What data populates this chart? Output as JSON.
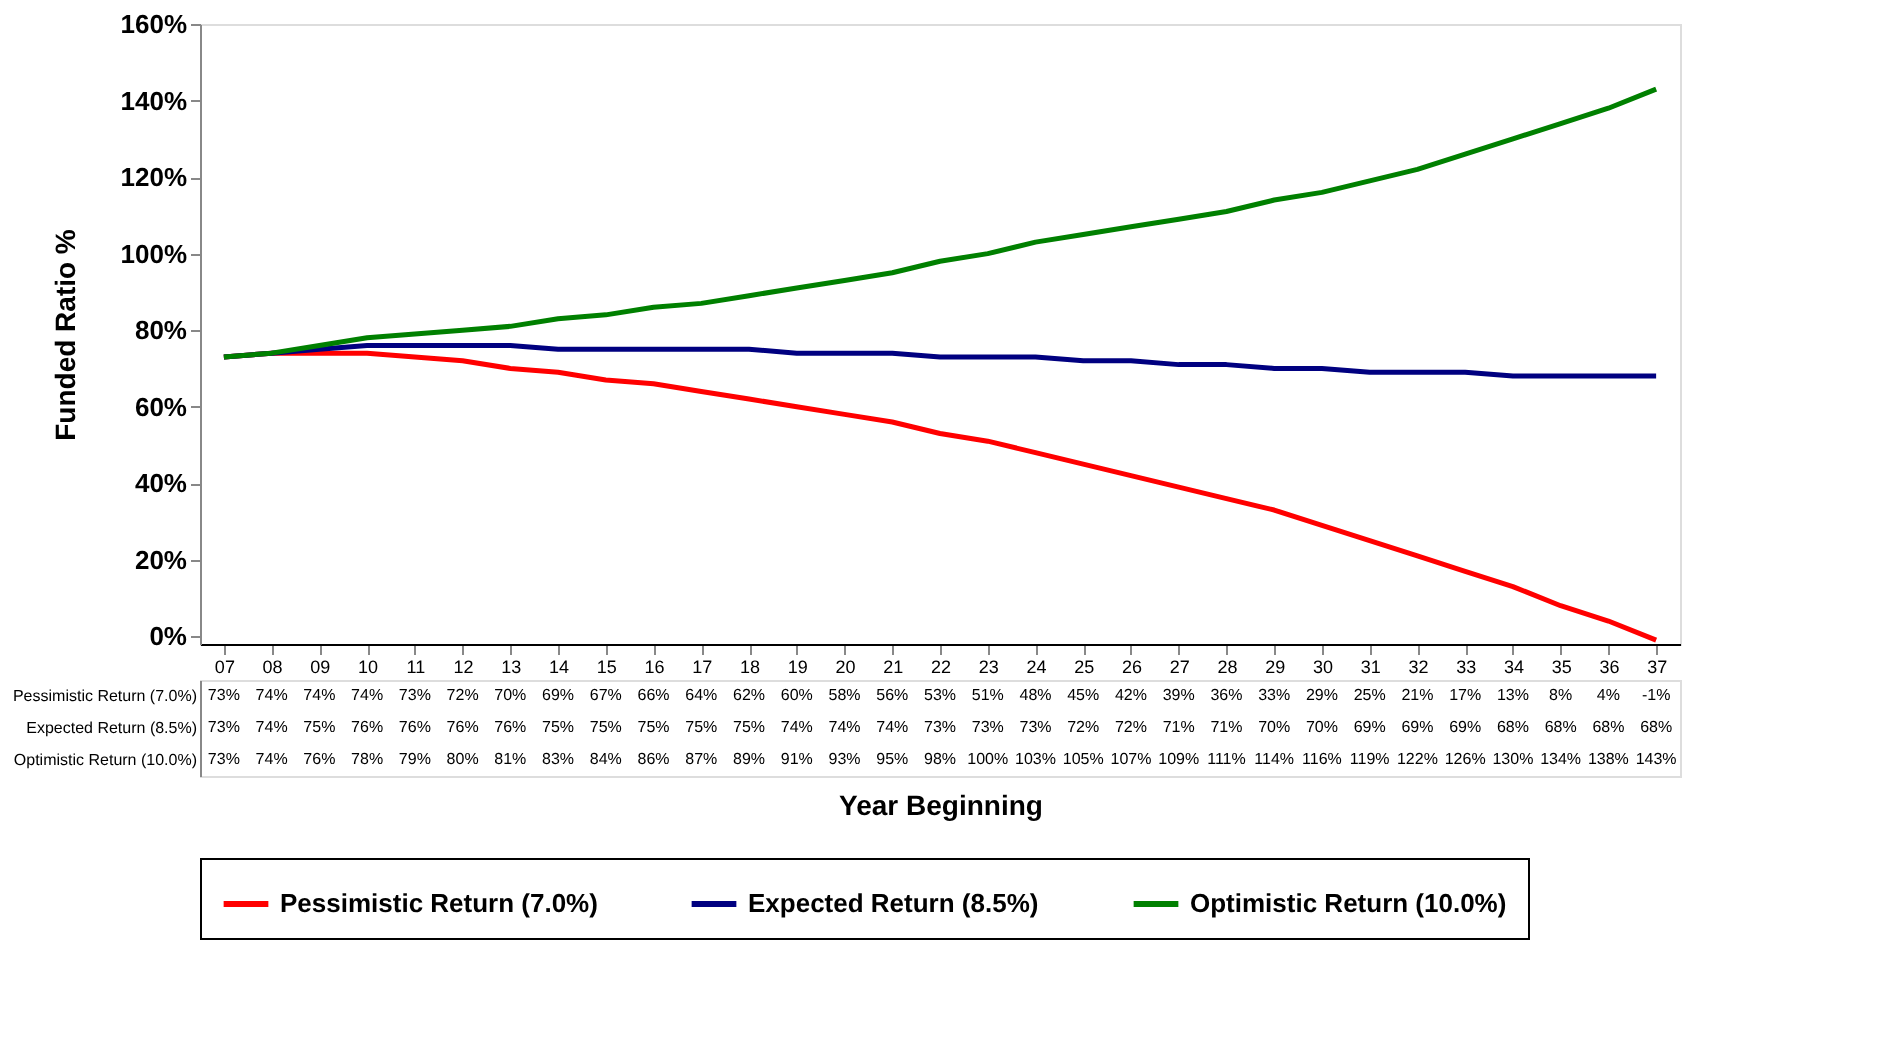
{
  "chart_data": {
    "type": "line",
    "xlabel": "Year Beginning",
    "ylabel": "Funded Ratio %",
    "categories": [
      "07",
      "08",
      "09",
      "10",
      "11",
      "12",
      "13",
      "14",
      "15",
      "16",
      "17",
      "18",
      "19",
      "20",
      "21",
      "22",
      "23",
      "24",
      "25",
      "26",
      "27",
      "28",
      "29",
      "30",
      "31",
      "32",
      "33",
      "34",
      "35",
      "36",
      "37"
    ],
    "series": [
      {
        "name": "Pessimistic Return (7.0%)",
        "color": "#ff0000",
        "values": [
          73,
          74,
          74,
          74,
          73,
          72,
          70,
          69,
          67,
          66,
          64,
          62,
          60,
          58,
          56,
          53,
          51,
          48,
          45,
          42,
          39,
          36,
          33,
          29,
          25,
          21,
          17,
          13,
          8,
          4,
          -1
        ],
        "value_labels": [
          "73%",
          "74%",
          "74%",
          "74%",
          "73%",
          "72%",
          "70%",
          "69%",
          "67%",
          "66%",
          "64%",
          "62%",
          "60%",
          "58%",
          "56%",
          "53%",
          "51%",
          "48%",
          "45%",
          "42%",
          "39%",
          "36%",
          "33%",
          "29%",
          "25%",
          "21%",
          "17%",
          "13%",
          "8%",
          "4%",
          "-1%"
        ]
      },
      {
        "name": "Expected Return (8.5%)",
        "color": "#000080",
        "values": [
          73,
          74,
          75,
          76,
          76,
          76,
          76,
          75,
          75,
          75,
          75,
          75,
          74,
          74,
          74,
          73,
          73,
          73,
          72,
          72,
          71,
          71,
          70,
          70,
          69,
          69,
          69,
          68,
          68,
          68,
          68
        ],
        "value_labels": [
          "73%",
          "74%",
          "75%",
          "76%",
          "76%",
          "76%",
          "76%",
          "75%",
          "75%",
          "75%",
          "75%",
          "75%",
          "74%",
          "74%",
          "74%",
          "73%",
          "73%",
          "73%",
          "72%",
          "72%",
          "71%",
          "71%",
          "70%",
          "70%",
          "69%",
          "69%",
          "69%",
          "68%",
          "68%",
          "68%",
          "68%"
        ]
      },
      {
        "name": "Optimistic Return (10.0%)",
        "color": "#008000",
        "values": [
          73,
          74,
          76,
          78,
          79,
          80,
          81,
          83,
          84,
          86,
          87,
          89,
          91,
          93,
          95,
          98,
          100,
          103,
          105,
          107,
          109,
          111,
          114,
          116,
          119,
          122,
          126,
          130,
          134,
          138,
          143
        ],
        "value_labels": [
          "73%",
          "74%",
          "76%",
          "78%",
          "79%",
          "80%",
          "81%",
          "83%",
          "84%",
          "86%",
          "87%",
          "89%",
          "91%",
          "93%",
          "95%",
          "98%",
          "100%",
          "103%",
          "105%",
          "107%",
          "109%",
          "111%",
          "114%",
          "116%",
          "119%",
          "122%",
          "126%",
          "130%",
          "134%",
          "138%",
          "143%"
        ]
      }
    ],
    "ylim": [
      -2,
      160
    ],
    "yticks": [
      {
        "value": 0,
        "label": "0%"
      },
      {
        "value": 20,
        "label": "20%"
      },
      {
        "value": 40,
        "label": "40%"
      },
      {
        "value": 60,
        "label": "60%"
      },
      {
        "value": 80,
        "label": "80%"
      },
      {
        "value": 100,
        "label": "100%"
      },
      {
        "value": 120,
        "label": "120%"
      },
      {
        "value": 140,
        "label": "140%"
      },
      {
        "value": 160,
        "label": "160%"
      }
    ],
    "grid": false,
    "legend": "bottom",
    "marker": "none",
    "line_style": "solid"
  }
}
